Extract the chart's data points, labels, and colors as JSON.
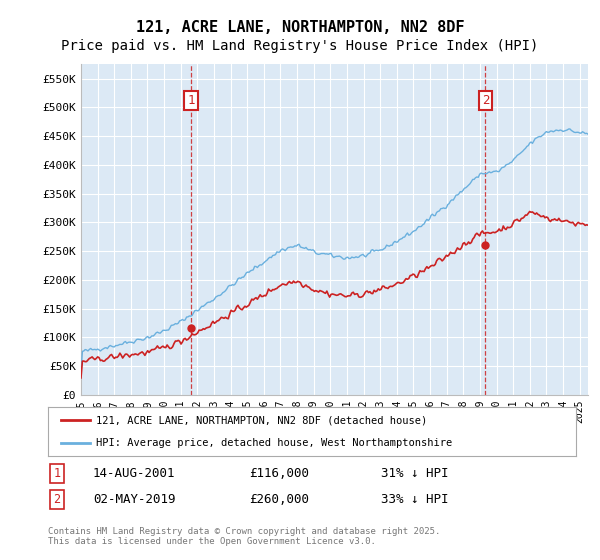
{
  "title_line1": "121, ACRE LANE, NORTHAMPTON, NN2 8DF",
  "title_line2": "Price paid vs. HM Land Registry's House Price Index (HPI)",
  "ylim": [
    0,
    575000
  ],
  "yticks": [
    0,
    50000,
    100000,
    150000,
    200000,
    250000,
    300000,
    350000,
    400000,
    450000,
    500000,
    550000
  ],
  "ytick_labels": [
    "£0",
    "£50K",
    "£100K",
    "£150K",
    "£200K",
    "£250K",
    "£300K",
    "£350K",
    "£400K",
    "£450K",
    "£500K",
    "£550K"
  ],
  "plot_bg_color": "#dce9f5",
  "hpi_color": "#6ab0de",
  "price_color": "#cc2222",
  "marker1_x": 2001.62,
  "marker1_price": 116000,
  "marker1_date": "14-AUG-2001",
  "marker1_label": "31% ↓ HPI",
  "marker2_x": 2019.33,
  "marker2_price": 260000,
  "marker2_date": "02-MAY-2019",
  "marker2_label": "33% ↓ HPI",
  "legend_label1": "121, ACRE LANE, NORTHAMPTON, NN2 8DF (detached house)",
  "legend_label2": "HPI: Average price, detached house, West Northamptonshire",
  "footer": "Contains HM Land Registry data © Crown copyright and database right 2025.\nThis data is licensed under the Open Government Licence v3.0.",
  "title_fontsize": 11,
  "subtitle_fontsize": 10,
  "xmin": 1995,
  "xmax": 2025.5
}
